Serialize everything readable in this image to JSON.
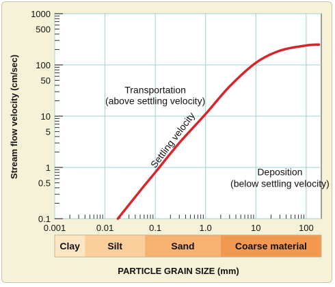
{
  "chart_data": {
    "type": "line",
    "xlabel": "PARTICLE GRAIN SIZE (mm)",
    "ylabel": "Stream flow velocity (cm/sec)",
    "xscale": "log",
    "yscale": "log",
    "xlim": [
      0.001,
      200
    ],
    "ylim": [
      0.1,
      1000
    ],
    "x_ticks": [
      "0.001",
      "0.01",
      "0.1",
      "1.0",
      "10",
      "100"
    ],
    "y_ticks": [
      "0.1",
      "0.5",
      "1",
      "5",
      "10",
      "50",
      "100",
      "500",
      "1000"
    ],
    "grid": true,
    "series": [
      {
        "name": "Settling velocity",
        "color": "#d7262b",
        "x": [
          0.018,
          0.05,
          0.1,
          0.3,
          1.0,
          3.0,
          10,
          30,
          100,
          180
        ],
        "y": [
          0.1,
          0.35,
          0.8,
          3.0,
          11,
          38,
          110,
          190,
          240,
          250
        ]
      }
    ],
    "annotations": [
      {
        "text": "Transportation",
        "x": 0.1,
        "y": 28
      },
      {
        "text": "(above settling velocity)",
        "x": 0.1,
        "y": 17
      },
      {
        "text": "Deposition",
        "x": 30,
        "y": 0.7
      },
      {
        "text": "(below settling velocity)",
        "x": 30,
        "y": 0.42
      }
    ],
    "curve_label": "Settling velocity",
    "size_classes": [
      {
        "label": "Clay",
        "from": 0.001,
        "to": 0.004,
        "color": "#fde6c4"
      },
      {
        "label": "Silt",
        "from": 0.004,
        "to": 0.0625,
        "color": "#fbcf9b"
      },
      {
        "label": "Sand",
        "from": 0.0625,
        "to": 2,
        "color": "#f7b170"
      },
      {
        "label": "Coarse material",
        "from": 2,
        "to": 200,
        "color": "#f39850"
      }
    ]
  }
}
